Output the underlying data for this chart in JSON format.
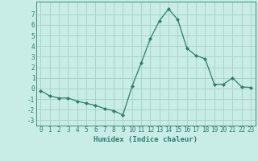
{
  "x": [
    0,
    1,
    2,
    3,
    4,
    5,
    6,
    7,
    8,
    9,
    10,
    11,
    12,
    13,
    14,
    15,
    16,
    17,
    18,
    19,
    20,
    21,
    22,
    23
  ],
  "y": [
    -0.2,
    -0.7,
    -0.9,
    -0.9,
    -1.2,
    -1.4,
    -1.6,
    -1.9,
    -2.1,
    -2.5,
    0.2,
    2.4,
    4.7,
    6.4,
    7.5,
    6.5,
    3.8,
    3.1,
    2.8,
    0.4,
    0.4,
    1.0,
    0.15,
    0.1
  ],
  "line_color": "#2d7d6e",
  "marker": "D",
  "marker_size": 2.0,
  "bg_color": "#c8ece6",
  "grid_color": "#a8d0c8",
  "xlabel": "Humidex (Indice chaleur)",
  "ylim": [
    -3.5,
    8.2
  ],
  "xlim": [
    -0.5,
    23.5
  ],
  "yticks": [
    -3,
    -2,
    -1,
    0,
    1,
    2,
    3,
    4,
    5,
    6,
    7
  ],
  "xticks": [
    0,
    1,
    2,
    3,
    4,
    5,
    6,
    7,
    8,
    9,
    10,
    11,
    12,
    13,
    14,
    15,
    16,
    17,
    18,
    19,
    20,
    21,
    22,
    23
  ],
  "tick_fontsize": 5.5,
  "label_fontsize": 6.5,
  "label_color": "#2d7d6e",
  "tick_color": "#2d7d6e",
  "axis_color": "#2d7d6e"
}
